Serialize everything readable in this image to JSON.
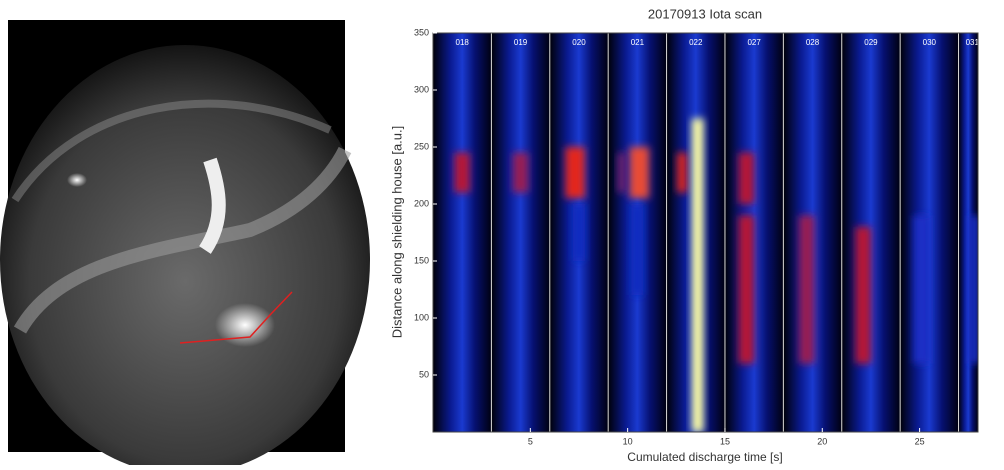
{
  "chart_data": {
    "type": "heatmap",
    "title": "20170913 Iota scan",
    "x_label": "Cumulated discharge time [s]",
    "y_label": "Distance along shielding house [a.u.]",
    "xlim": [
      0,
      28
    ],
    "ylim": [
      0,
      350
    ],
    "xticks": [
      5,
      10,
      15,
      20,
      25
    ],
    "yticks": [
      50,
      100,
      150,
      200,
      250,
      300,
      350
    ],
    "colormap": [
      "#00001a",
      "#1030d0",
      "#e01010",
      "#ffffa0"
    ],
    "panels": [
      {
        "label": "018",
        "start": 0,
        "end": 3,
        "spots": [
          {
            "x": 1.5,
            "width": 0.8,
            "y": [
              210,
              245
            ],
            "level": 0.6
          }
        ]
      },
      {
        "label": "019",
        "start": 3,
        "end": 6,
        "spots": [
          {
            "x": 4.5,
            "width": 0.8,
            "y": [
              210,
              245
            ],
            "level": 0.55
          }
        ]
      },
      {
        "label": "020",
        "start": 6,
        "end": 9,
        "spots": [
          {
            "x": 7.3,
            "width": 1,
            "y": [
              205,
              250
            ],
            "level": 0.7
          },
          {
            "x": 7.5,
            "width": 0.6,
            "y": [
              150,
              200
            ],
            "level": 0.3
          }
        ]
      },
      {
        "label": "021",
        "start": 9,
        "end": 12,
        "spots": [
          {
            "x": 10.6,
            "width": 1,
            "y": [
              205,
              250
            ],
            "level": 0.75
          },
          {
            "x": 9.7,
            "width": 0.4,
            "y": [
              210,
              245
            ],
            "level": 0.5
          },
          {
            "x": 10.5,
            "width": 0.6,
            "y": [
              120,
              200
            ],
            "level": 0.3
          }
        ]
      },
      {
        "label": "022",
        "start": 12,
        "end": 15,
        "spots": [
          {
            "x": 12.8,
            "width": 0.5,
            "y": [
              210,
              245
            ],
            "level": 0.7
          },
          {
            "x": 13.6,
            "width": 0.6,
            "y": [
              0,
              275
            ],
            "level": 1
          }
        ]
      },
      {
        "label": "027",
        "start": 15,
        "end": 18,
        "spots": [
          {
            "x": 16.1,
            "width": 0.8,
            "y": [
              200,
              245
            ],
            "level": 0.6
          },
          {
            "x": 16.1,
            "width": 0.8,
            "y": [
              60,
              190
            ],
            "level": 0.6
          }
        ]
      },
      {
        "label": "028",
        "start": 18,
        "end": 21,
        "spots": [
          {
            "x": 19.2,
            "width": 0.8,
            "y": [
              60,
              190
            ],
            "level": 0.55
          }
        ]
      },
      {
        "label": "029",
        "start": 21,
        "end": 24,
        "spots": [
          {
            "x": 22.1,
            "width": 0.8,
            "y": [
              60,
              180
            ],
            "level": 0.6
          }
        ]
      },
      {
        "label": "030",
        "start": 24,
        "end": 27,
        "spots": [
          {
            "x": 25.1,
            "width": 0.8,
            "y": [
              60,
              190
            ],
            "level": 0.35
          }
        ]
      },
      {
        "label": "031",
        "start": 27,
        "end": 28,
        "spots": [
          {
            "x": 27.8,
            "width": 0.5,
            "y": [
              60,
              190
            ],
            "level": 0.35
          }
        ]
      }
    ]
  }
}
